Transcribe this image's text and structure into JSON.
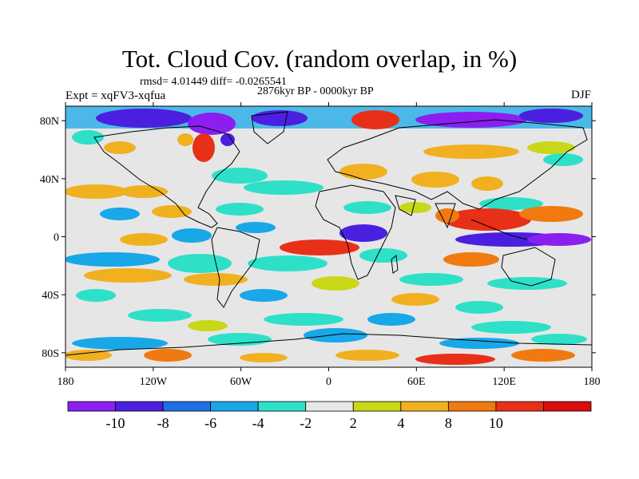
{
  "title": "Tot. Cloud Cov. (random overlap, in %)",
  "stats": "rmsd= 4.01449 diff= -0.0265541",
  "period": "2876kyr BP - 0000kyr BP",
  "experiment": "Expt = xqFV3-xqfua",
  "season": "DJF",
  "lon_labels": [
    "180",
    "120W",
    "60W",
    "0",
    "60E",
    "120E",
    "180"
  ],
  "lat_labels": [
    "80N",
    "40N",
    "0",
    "40S",
    "80S"
  ],
  "colorbar": {
    "labels": [
      "-10",
      "-8",
      "-6",
      "-4",
      "-2",
      "2",
      "4",
      "8",
      "10"
    ],
    "colors": [
      "#8a1ff0",
      "#4b1fe0",
      "#1f6ee6",
      "#18a8e8",
      "#2ee0c8",
      "#e8e8e8",
      "#c8d818",
      "#f0b020",
      "#f07a10",
      "#e83018",
      "#d80e0e"
    ]
  },
  "colors": {
    "background": "#e6e6e6",
    "coast": "#000000"
  }
}
